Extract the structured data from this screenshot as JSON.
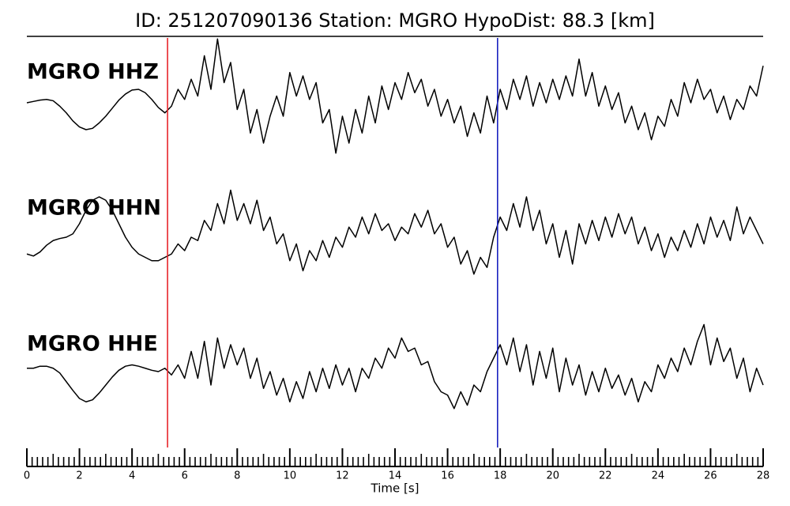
{
  "chart_data": {
    "type": "seismogram",
    "title": "ID: 251207090136   Station: MGRO   HypoDist:    88.3 [km]",
    "x_label": "Time [s]",
    "xlim": [
      0,
      28
    ],
    "xticks": [
      0,
      2,
      4,
      6,
      8,
      10,
      12,
      14,
      16,
      18,
      20,
      22,
      24,
      26,
      28
    ],
    "ylim": [
      -1,
      1
    ],
    "label_color": "#4e9a06",
    "markers": [
      {
        "x": 5.35,
        "color": "#e8242a"
      },
      {
        "x": 17.9,
        "color": "#1a22c0"
      }
    ],
    "x": [
      0,
      0.25,
      0.5,
      0.75,
      1,
      1.25,
      1.5,
      1.75,
      2,
      2.25,
      2.5,
      2.75,
      3,
      3.25,
      3.5,
      3.75,
      4,
      4.25,
      4.5,
      4.75,
      5,
      5.25,
      5.5,
      5.75,
      6,
      6.25,
      6.5,
      6.75,
      7,
      7.25,
      7.5,
      7.75,
      8,
      8.25,
      8.5,
      8.75,
      9,
      9.25,
      9.5,
      9.75,
      10,
      10.25,
      10.5,
      10.75,
      11,
      11.25,
      11.5,
      11.75,
      12,
      12.25,
      12.5,
      12.75,
      13,
      13.25,
      13.5,
      13.75,
      14,
      14.25,
      14.5,
      14.75,
      15,
      15.25,
      15.5,
      15.75,
      16,
      16.25,
      16.5,
      16.75,
      17,
      17.25,
      17.5,
      17.75,
      18,
      18.25,
      18.5,
      18.75,
      19,
      19.25,
      19.5,
      19.75,
      20,
      20.25,
      20.5,
      20.75,
      21,
      21.25,
      21.5,
      21.75,
      22,
      22.25,
      22.5,
      22.75,
      23,
      23.25,
      23.5,
      23.75,
      24,
      24.25,
      24.5,
      24.75,
      25,
      25.25,
      25.5,
      25.75,
      26,
      26.25,
      26.5,
      26.75,
      27,
      27.25,
      27.5,
      27.75,
      28
    ],
    "series": [
      {
        "name": "MGRO HHZ",
        "color": "#000000",
        "values": [
          0.0,
          0.02,
          0.04,
          0.05,
          0.03,
          -0.05,
          -0.15,
          -0.27,
          -0.36,
          -0.4,
          -0.38,
          -0.3,
          -0.2,
          -0.08,
          0.04,
          0.13,
          0.19,
          0.2,
          0.15,
          0.05,
          -0.07,
          -0.15,
          -0.05,
          0.2,
          0.05,
          0.35,
          0.1,
          0.7,
          0.2,
          0.95,
          0.3,
          0.6,
          -0.1,
          0.2,
          -0.45,
          -0.1,
          -0.6,
          -0.2,
          0.1,
          -0.2,
          0.45,
          0.1,
          0.4,
          0.05,
          0.3,
          -0.3,
          -0.1,
          -0.75,
          -0.2,
          -0.6,
          -0.1,
          -0.45,
          0.1,
          -0.3,
          0.25,
          -0.1,
          0.3,
          0.05,
          0.45,
          0.15,
          0.35,
          -0.05,
          0.2,
          -0.2,
          0.05,
          -0.3,
          -0.05,
          -0.5,
          -0.15,
          -0.45,
          0.1,
          -0.3,
          0.2,
          -0.1,
          0.35,
          0.05,
          0.4,
          -0.05,
          0.3,
          0.0,
          0.35,
          0.05,
          0.4,
          0.1,
          0.65,
          0.1,
          0.45,
          -0.05,
          0.25,
          -0.1,
          0.15,
          -0.3,
          -0.05,
          -0.4,
          -0.15,
          -0.55,
          -0.2,
          -0.35,
          0.05,
          -0.2,
          0.3,
          0.0,
          0.35,
          0.05,
          0.2,
          -0.15,
          0.1,
          -0.25,
          0.05,
          -0.1,
          0.25,
          0.1,
          0.55
        ]
      },
      {
        "name": "MGRO HHN",
        "color": "#000000",
        "values": [
          -0.25,
          -0.28,
          -0.22,
          -0.12,
          -0.05,
          -0.02,
          0.0,
          0.05,
          0.2,
          0.4,
          0.55,
          0.6,
          0.55,
          0.4,
          0.2,
          0.0,
          -0.15,
          -0.25,
          -0.3,
          -0.35,
          -0.35,
          -0.3,
          -0.25,
          -0.1,
          -0.2,
          0.0,
          -0.05,
          0.25,
          0.1,
          0.5,
          0.2,
          0.7,
          0.25,
          0.5,
          0.2,
          0.55,
          0.1,
          0.3,
          -0.1,
          0.05,
          -0.35,
          -0.1,
          -0.5,
          -0.2,
          -0.35,
          -0.05,
          -0.3,
          0.0,
          -0.15,
          0.15,
          0.0,
          0.3,
          0.05,
          0.35,
          0.1,
          0.2,
          -0.05,
          0.15,
          0.05,
          0.35,
          0.15,
          0.4,
          0.05,
          0.2,
          -0.15,
          0.0,
          -0.4,
          -0.2,
          -0.55,
          -0.3,
          -0.45,
          0.0,
          0.3,
          0.1,
          0.5,
          0.15,
          0.6,
          0.1,
          0.4,
          -0.1,
          0.2,
          -0.3,
          0.1,
          -0.4,
          0.2,
          -0.1,
          0.25,
          -0.05,
          0.3,
          0.0,
          0.35,
          0.05,
          0.3,
          -0.1,
          0.15,
          -0.2,
          0.05,
          -0.3,
          0.0,
          -0.2,
          0.1,
          -0.15,
          0.2,
          -0.1,
          0.3,
          0.0,
          0.25,
          -0.05,
          0.45,
          0.05,
          0.3,
          0.1,
          -0.1
        ]
      },
      {
        "name": "MGRO HHE",
        "color": "#000000",
        "values": [
          0.05,
          0.05,
          0.08,
          0.08,
          0.05,
          -0.02,
          -0.15,
          -0.28,
          -0.4,
          -0.45,
          -0.42,
          -0.32,
          -0.2,
          -0.08,
          0.02,
          0.08,
          0.1,
          0.08,
          0.05,
          0.02,
          0.0,
          0.05,
          -0.05,
          0.1,
          -0.1,
          0.3,
          -0.1,
          0.45,
          -0.2,
          0.5,
          0.05,
          0.4,
          0.1,
          0.35,
          -0.1,
          0.2,
          -0.25,
          0.0,
          -0.35,
          -0.1,
          -0.45,
          -0.15,
          -0.4,
          0.0,
          -0.3,
          0.05,
          -0.25,
          0.1,
          -0.2,
          0.05,
          -0.3,
          0.05,
          -0.1,
          0.2,
          0.05,
          0.35,
          0.2,
          0.5,
          0.3,
          0.35,
          0.1,
          0.15,
          -0.15,
          -0.3,
          -0.35,
          -0.55,
          -0.3,
          -0.5,
          -0.2,
          -0.3,
          0.0,
          0.2,
          0.4,
          0.1,
          0.5,
          0.0,
          0.4,
          -0.2,
          0.3,
          -0.1,
          0.35,
          -0.3,
          0.2,
          -0.2,
          0.1,
          -0.35,
          0.0,
          -0.3,
          0.05,
          -0.25,
          -0.05,
          -0.35,
          -0.1,
          -0.45,
          -0.15,
          -0.3,
          0.1,
          -0.1,
          0.2,
          0.0,
          0.35,
          0.1,
          0.45,
          0.7,
          0.1,
          0.5,
          0.15,
          0.35,
          -0.1,
          0.2,
          -0.3,
          0.05,
          -0.2
        ]
      }
    ]
  }
}
